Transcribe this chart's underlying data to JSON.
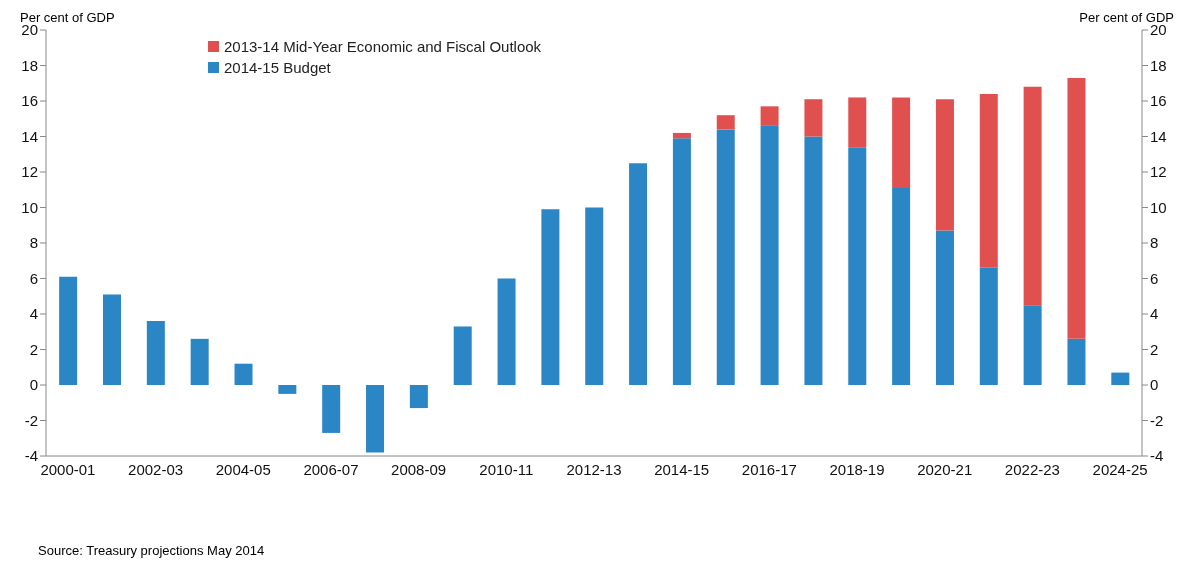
{
  "chart_data": {
    "type": "bar",
    "ylabel": "Per cent of GDP",
    "y2label": "Per cent of GDP",
    "categories": [
      "2000-01",
      null,
      "2002-03",
      null,
      "2004-05",
      null,
      "2006-07",
      null,
      "2008-09",
      null,
      "2010-11",
      null,
      "2012-13",
      null,
      "2014-15",
      null,
      "2016-17",
      null,
      "2018-19",
      null,
      "2020-21",
      null,
      "2022-23",
      null,
      "2024-25"
    ],
    "series": [
      {
        "name": "2014-15 Budget",
        "color": "#2a86c4",
        "values": [
          6.1,
          5.1,
          3.6,
          2.6,
          1.2,
          -0.5,
          -2.7,
          -3.8,
          -1.3,
          3.3,
          6.0,
          9.9,
          10.0,
          12.5,
          13.9,
          14.4,
          14.6,
          14.0,
          13.4,
          11.1,
          8.7,
          6.6,
          4.5,
          2.6,
          0.7
        ]
      },
      {
        "name": "2013-14 Mid-Year Economic and Fiscal Outlook",
        "color": "#e0504f",
        "values": [
          null,
          null,
          null,
          null,
          null,
          null,
          null,
          null,
          null,
          null,
          null,
          null,
          null,
          null,
          0.3,
          0.8,
          1.1,
          2.1,
          2.8,
          5.1,
          7.4,
          9.8,
          12.3,
          14.7,
          null
        ]
      }
    ],
    "stacked": true,
    "ylim": [
      -4,
      20
    ],
    "yticks": [
      -4,
      -2,
      0,
      2,
      4,
      6,
      8,
      10,
      12,
      14,
      16,
      18,
      20
    ],
    "y2lim": [
      -4,
      20
    ],
    "y2ticks": [
      -4,
      -2,
      0,
      2,
      4,
      6,
      8,
      10,
      12,
      14,
      16,
      18,
      20
    ],
    "legend": "top left",
    "annotations": [
      "Source: Treasury projections  May 2014"
    ]
  }
}
